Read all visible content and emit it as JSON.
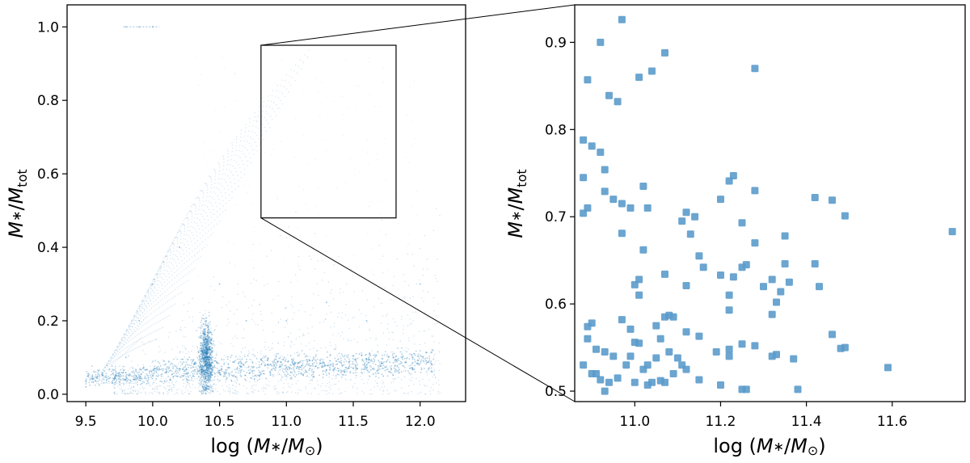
{
  "chart_data": [
    {
      "type": "scatter",
      "panel": "overview",
      "xlabel_parts": [
        "log (",
        "M",
        "∗",
        "/",
        "M",
        "⊙",
        ")"
      ],
      "ylabel_parts": [
        "M",
        "∗",
        "/",
        "M",
        "tot"
      ],
      "xlim": [
        9.36,
        12.34
      ],
      "ylim": [
        -0.02,
        1.06
      ],
      "xticks": [
        9.5,
        10.0,
        10.5,
        11.0,
        11.5,
        12.0
      ],
      "xtick_labels": [
        "9.5",
        "10.0",
        "10.5",
        "11.0",
        "11.5",
        "12.0"
      ],
      "yticks": [
        0.0,
        0.2,
        0.4,
        0.6,
        0.8,
        1.0
      ],
      "ytick_labels": [
        "0.0",
        "0.2",
        "0.4",
        "0.6",
        "0.8",
        "1.0"
      ],
      "point_color": "#1f77b4",
      "zoom_box": {
        "x": [
          10.81,
          11.82
        ],
        "y": [
          0.48,
          0.95
        ]
      },
      "points": [
        [
          9.5,
          0.02
        ],
        [
          9.6,
          0.025
        ],
        [
          9.7,
          0.03
        ],
        [
          9.8,
          0.04
        ],
        [
          9.9,
          0.05
        ],
        [
          10.0,
          0.05
        ],
        [
          10.1,
          0.06
        ],
        [
          10.2,
          0.07
        ],
        [
          10.3,
          0.09
        ],
        [
          10.4,
          0.1
        ],
        [
          10.38,
          0.15
        ],
        [
          10.4,
          0.2
        ],
        [
          10.42,
          0.05
        ],
        [
          10.5,
          0.06
        ],
        [
          10.6,
          0.05
        ],
        [
          10.8,
          0.05
        ],
        [
          11.0,
          0.05
        ],
        [
          11.2,
          0.06
        ],
        [
          11.5,
          0.07
        ],
        [
          11.8,
          0.1
        ],
        [
          9.8,
          0.1
        ],
        [
          9.9,
          0.2
        ],
        [
          10.0,
          0.3
        ],
        [
          10.2,
          0.4
        ],
        [
          10.5,
          0.3
        ],
        [
          10.7,
          0.2
        ],
        [
          11.0,
          0.2
        ],
        [
          11.3,
          0.25
        ],
        [
          11.6,
          0.2
        ],
        [
          12.0,
          0.3
        ],
        [
          9.8,
          1.0
        ],
        [
          9.9,
          1.0
        ],
        [
          10.0,
          1.0
        ]
      ]
    },
    {
      "type": "scatter",
      "panel": "zoom",
      "xlabel_parts": [
        "log (",
        "M",
        "∗",
        "/",
        "M",
        "⊙",
        ")"
      ],
      "ylabel_parts": [
        "M",
        "∗",
        "/",
        "M",
        "tot"
      ],
      "xlim": [
        10.86,
        11.77
      ],
      "ylim": [
        0.488,
        0.943
      ],
      "xticks": [
        11.0,
        11.2,
        11.4,
        11.6
      ],
      "xtick_labels": [
        "11.0",
        "11.2",
        "11.4",
        "11.6"
      ],
      "yticks": [
        0.5,
        0.6,
        0.7,
        0.8,
        0.9
      ],
      "ytick_labels": [
        "0.5",
        "0.6",
        "0.7",
        "0.8",
        "0.9"
      ],
      "point_color": "#5b9bcb",
      "points": [
        [
          10.97,
          0.926
        ],
        [
          10.92,
          0.9
        ],
        [
          10.89,
          0.857
        ],
        [
          10.94,
          0.839
        ],
        [
          10.96,
          0.832
        ],
        [
          11.01,
          0.86
        ],
        [
          11.04,
          0.867
        ],
        [
          11.07,
          0.888
        ],
        [
          11.28,
          0.87
        ],
        [
          10.88,
          0.788
        ],
        [
          10.9,
          0.781
        ],
        [
          10.92,
          0.774
        ],
        [
          10.88,
          0.745
        ],
        [
          10.93,
          0.754
        ],
        [
          10.88,
          0.704
        ],
        [
          10.89,
          0.71
        ],
        [
          10.93,
          0.729
        ],
        [
          10.95,
          0.72
        ],
        [
          10.97,
          0.715
        ],
        [
          10.99,
          0.71
        ],
        [
          11.02,
          0.735
        ],
        [
          11.03,
          0.71
        ],
        [
          10.97,
          0.681
        ],
        [
          11.02,
          0.662
        ],
        [
          11.11,
          0.695
        ],
        [
          11.12,
          0.705
        ],
        [
          11.14,
          0.7
        ],
        [
          11.13,
          0.68
        ],
        [
          11.2,
          0.72
        ],
        [
          11.22,
          0.741
        ],
        [
          11.23,
          0.747
        ],
        [
          11.28,
          0.73
        ],
        [
          11.25,
          0.693
        ],
        [
          11.28,
          0.67
        ],
        [
          11.35,
          0.678
        ],
        [
          11.42,
          0.722
        ],
        [
          11.46,
          0.719
        ],
        [
          11.49,
          0.701
        ],
        [
          11.74,
          0.683
        ],
        [
          11.15,
          0.655
        ],
        [
          11.16,
          0.642
        ],
        [
          11.07,
          0.634
        ],
        [
          11.01,
          0.628
        ],
        [
          11.0,
          0.622
        ],
        [
          11.01,
          0.61
        ],
        [
          11.12,
          0.621
        ],
        [
          11.2,
          0.633
        ],
        [
          11.23,
          0.631
        ],
        [
          11.25,
          0.642
        ],
        [
          11.26,
          0.645
        ],
        [
          11.22,
          0.61
        ],
        [
          11.22,
          0.593
        ],
        [
          11.3,
          0.62
        ],
        [
          11.32,
          0.628
        ],
        [
          11.35,
          0.646
        ],
        [
          11.36,
          0.625
        ],
        [
          11.34,
          0.614
        ],
        [
          11.33,
          0.602
        ],
        [
          11.32,
          0.588
        ],
        [
          11.42,
          0.646
        ],
        [
          11.43,
          0.62
        ],
        [
          10.89,
          0.574
        ],
        [
          10.9,
          0.578
        ],
        [
          10.89,
          0.56
        ],
        [
          10.91,
          0.548
        ],
        [
          10.93,
          0.545
        ],
        [
          10.95,
          0.54
        ],
        [
          10.97,
          0.582
        ],
        [
          10.99,
          0.571
        ],
        [
          11.0,
          0.556
        ],
        [
          11.01,
          0.555
        ],
        [
          11.05,
          0.575
        ],
        [
          11.07,
          0.585
        ],
        [
          11.08,
          0.587
        ],
        [
          11.09,
          0.585
        ],
        [
          11.06,
          0.56
        ],
        [
          11.08,
          0.545
        ],
        [
          11.1,
          0.538
        ],
        [
          11.12,
          0.568
        ],
        [
          11.15,
          0.563
        ],
        [
          11.19,
          0.545
        ],
        [
          11.22,
          0.548
        ],
        [
          11.25,
          0.554
        ],
        [
          11.28,
          0.552
        ],
        [
          11.32,
          0.54
        ],
        [
          11.33,
          0.542
        ],
        [
          11.37,
          0.537
        ],
        [
          11.46,
          0.565
        ],
        [
          11.48,
          0.549
        ],
        [
          11.49,
          0.55
        ],
        [
          10.88,
          0.53
        ],
        [
          10.9,
          0.52
        ],
        [
          10.91,
          0.52
        ],
        [
          10.92,
          0.513
        ],
        [
          10.94,
          0.51
        ],
        [
          10.96,
          0.515
        ],
        [
          10.98,
          0.53
        ],
        [
          11.0,
          0.51
        ],
        [
          11.02,
          0.525
        ],
        [
          11.04,
          0.51
        ],
        [
          11.06,
          0.512
        ],
        [
          11.07,
          0.51
        ],
        [
          11.09,
          0.52
        ],
        [
          11.12,
          0.525
        ],
        [
          11.15,
          0.513
        ],
        [
          11.2,
          0.507
        ],
        [
          11.22,
          0.54
        ],
        [
          11.25,
          0.502
        ],
        [
          11.26,
          0.502
        ],
        [
          11.38,
          0.502
        ],
        [
          11.59,
          0.527
        ],
        [
          10.93,
          0.5
        ],
        [
          11.03,
          0.507
        ],
        [
          10.99,
          0.54
        ],
        [
          11.03,
          0.53
        ],
        [
          11.05,
          0.538
        ],
        [
          11.11,
          0.53
        ]
      ]
    }
  ]
}
